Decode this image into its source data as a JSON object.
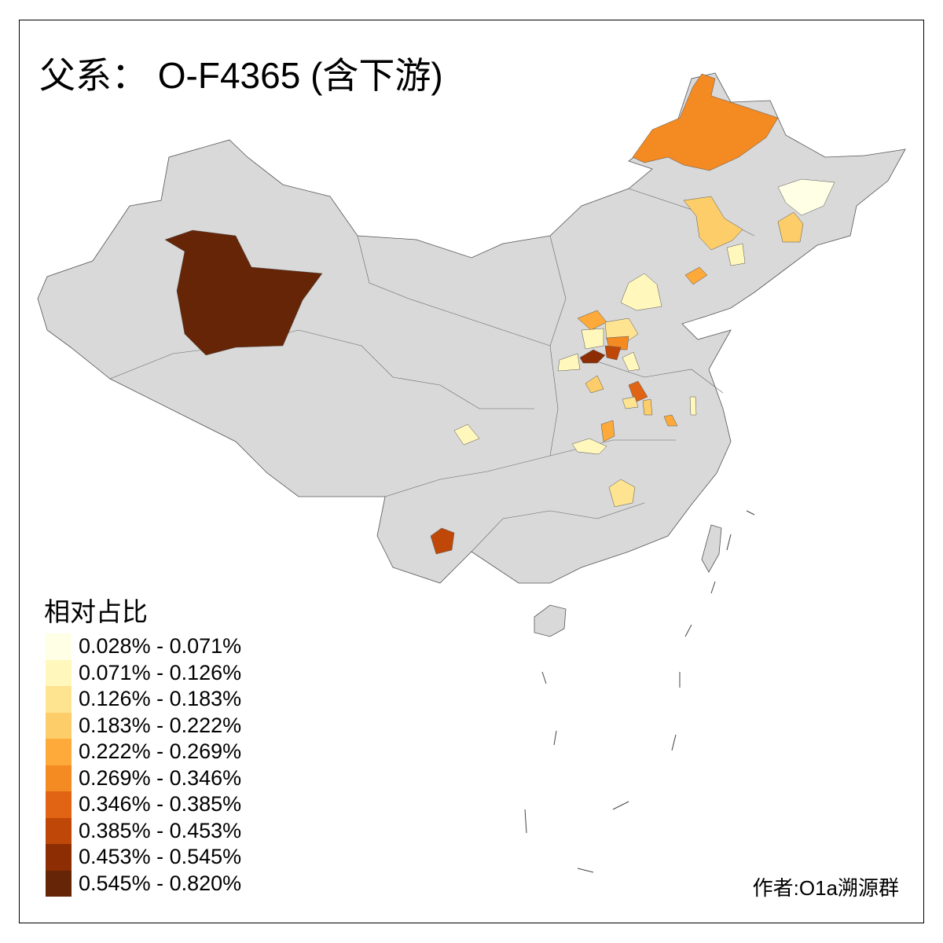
{
  "title": "父系： O-F4365 (含下游)",
  "background_fill": "#D9D9D9",
  "legend": {
    "title": "相对占比",
    "items": [
      {
        "label": "0.028% - 0.071%",
        "color": "#FFFFE5"
      },
      {
        "label": "0.071% - 0.126%",
        "color": "#FFF7BC"
      },
      {
        "label": "0.126% - 0.183%",
        "color": "#FEE391"
      },
      {
        "label": "0.183% - 0.222%",
        "color": "#FDCD69"
      },
      {
        "label": "0.222% - 0.269%",
        "color": "#FDAA3A"
      },
      {
        "label": "0.269% - 0.346%",
        "color": "#F38A22"
      },
      {
        "label": "0.346% - 0.385%",
        "color": "#E06414"
      },
      {
        "label": "0.385% - 0.453%",
        "color": "#BF4808"
      },
      {
        "label": "0.453% - 0.545%",
        "color": "#8C2D04"
      },
      {
        "label": "0.545% - 0.820%",
        "color": "#662506"
      }
    ]
  },
  "credit": "作者:O1a溯源群"
}
